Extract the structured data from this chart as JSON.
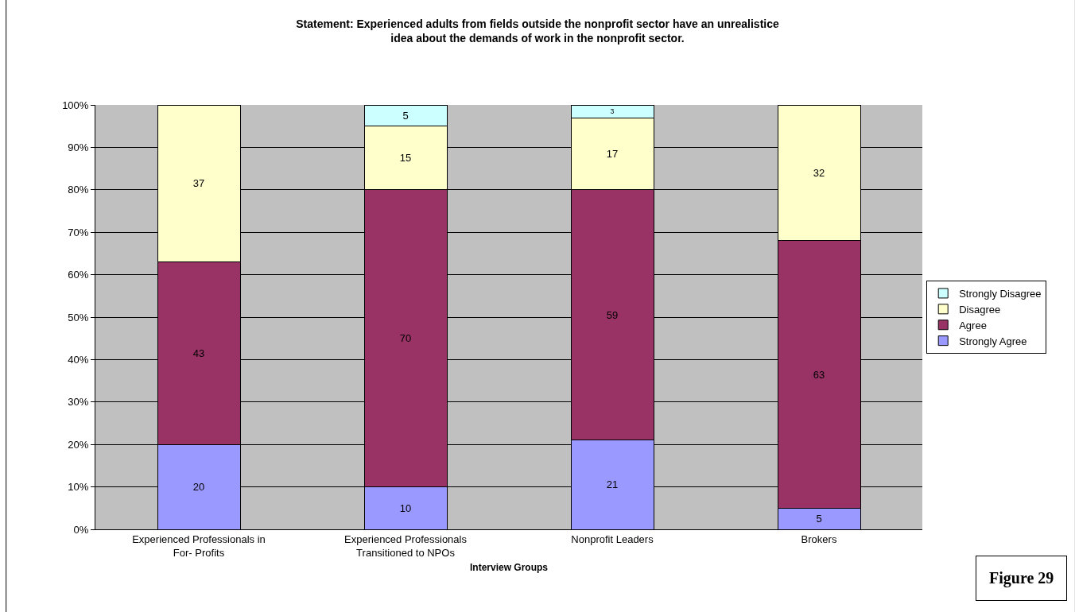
{
  "chart_data": {
    "type": "bar",
    "stacked": true,
    "title": "Statement: Experienced adults from fields outside the nonprofit sector have an unrealistice idea about the demands of work in the nonprofit sector.",
    "xlabel": "Interview Groups",
    "categories": [
      "Experienced Professionals in For- Profits",
      "Experienced Professionals Transitioned to NPOs",
      "Nonprofit Leaders",
      "Brokers"
    ],
    "series": [
      {
        "name": "Strongly Agree",
        "color": "#9999ff",
        "values": [
          20,
          10,
          21,
          5
        ]
      },
      {
        "name": "Agree",
        "color": "#993366",
        "values": [
          43,
          70,
          59,
          63
        ]
      },
      {
        "name": "Disagree",
        "color": "#ffffcc",
        "values": [
          37,
          15,
          17,
          32
        ]
      },
      {
        "name": "Strongly Disagree",
        "color": "#ccffff",
        "values": [
          null,
          5,
          3,
          null
        ]
      }
    ],
    "ylim": [
      0,
      100
    ],
    "yticks": [
      {
        "value": 0,
        "label": "0%"
      },
      {
        "value": 10,
        "label": "10%"
      },
      {
        "value": 20,
        "label": "20%"
      },
      {
        "value": 30,
        "label": "30%"
      },
      {
        "value": 40,
        "label": "40%"
      },
      {
        "value": 50,
        "label": "50%"
      },
      {
        "value": 60,
        "label": "60%"
      },
      {
        "value": 70,
        "label": "70%"
      },
      {
        "value": 80,
        "label": "80%"
      },
      {
        "value": 90,
        "label": "90%"
      },
      {
        "value": 100,
        "label": "100%"
      }
    ],
    "grid": "y",
    "legend": "right",
    "data_labels": true,
    "annotations": [
      "Figure 29"
    ]
  }
}
